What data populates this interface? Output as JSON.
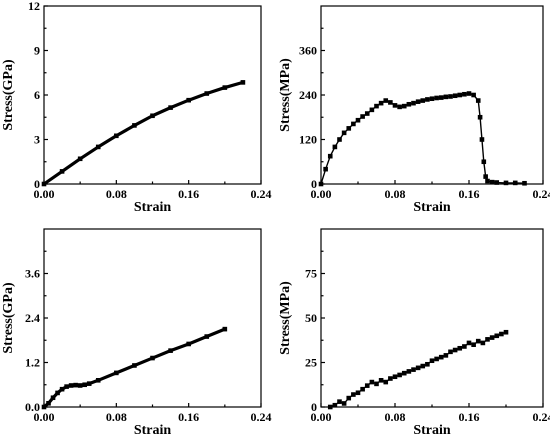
{
  "chart_data": [
    {
      "type": "line",
      "marker": "square",
      "color": "#000000",
      "xlabel": "Strain",
      "ylabel": "Stress(GPa)",
      "xlim": [
        0,
        0.24
      ],
      "ylim": [
        0,
        12
      ],
      "xticks": [
        0.0,
        0.08,
        0.16,
        0.24
      ],
      "xtick_labels": [
        "0.00",
        "0.08",
        "0.16",
        "0.24"
      ],
      "yticks": [
        0,
        3,
        6,
        9,
        12
      ],
      "ytick_labels": [
        "0",
        "3",
        "6",
        "9",
        "12"
      ],
      "grid": false,
      "series": [
        {
          "x": [
            0,
            0.02,
            0.04,
            0.06,
            0.08,
            0.1,
            0.12,
            0.14,
            0.16,
            0.18,
            0.2,
            0.22
          ],
          "y": [
            0,
            0.85,
            1.7,
            2.5,
            3.25,
            3.95,
            4.6,
            5.15,
            5.65,
            6.1,
            6.5,
            6.85
          ]
        }
      ]
    },
    {
      "type": "scatter",
      "marker": "square",
      "color": "#000000",
      "xlabel": "Strain",
      "ylabel": "Stress(MPa)",
      "xlim": [
        0,
        0.24
      ],
      "ylim": [
        0,
        480
      ],
      "xticks": [
        0.0,
        0.08,
        0.16,
        0.24
      ],
      "xtick_labels": [
        "0.00",
        "0.08",
        "0.16",
        "0.24"
      ],
      "yticks": [
        0,
        120,
        240,
        360
      ],
      "ytick_labels": [
        "0",
        "120",
        "240",
        "360"
      ],
      "grid": false,
      "series": [
        {
          "x": [
            0,
            0.005,
            0.01,
            0.015,
            0.02,
            0.025,
            0.03,
            0.035,
            0.04,
            0.045,
            0.05,
            0.055,
            0.06,
            0.065,
            0.07,
            0.075,
            0.08,
            0.085,
            0.09,
            0.095,
            0.1,
            0.105,
            0.11,
            0.115,
            0.12,
            0.125,
            0.13,
            0.135,
            0.14,
            0.145,
            0.15,
            0.155,
            0.16,
            0.165,
            0.17,
            0.172,
            0.174,
            0.176,
            0.178,
            0.18,
            0.185,
            0.19,
            0.2,
            0.21,
            0.22
          ],
          "y": [
            0,
            40,
            75,
            100,
            120,
            138,
            150,
            162,
            172,
            182,
            190,
            200,
            210,
            218,
            225,
            220,
            212,
            208,
            210,
            215,
            218,
            222,
            225,
            228,
            230,
            232,
            233,
            235,
            236,
            238,
            240,
            242,
            244,
            240,
            225,
            180,
            120,
            60,
            20,
            8,
            5,
            4,
            3,
            3,
            2
          ]
        }
      ]
    },
    {
      "type": "line",
      "marker": "square",
      "color": "#000000",
      "xlabel": "Strain",
      "ylabel": "Stress(GPa)",
      "xlim": [
        0,
        0.24
      ],
      "ylim": [
        0,
        4.8
      ],
      "xticks": [
        0.0,
        0.08,
        0.16,
        0.24
      ],
      "xtick_labels": [
        "0.00",
        "0.08",
        "0.16",
        "0.24"
      ],
      "yticks": [
        0,
        1.2,
        2.4,
        3.6
      ],
      "ytick_labels": [
        "0.0",
        "1.2",
        "2.4",
        "3.6"
      ],
      "grid": false,
      "series": [
        {
          "x": [
            0,
            0.005,
            0.01,
            0.015,
            0.02,
            0.025,
            0.03,
            0.035,
            0.04,
            0.045,
            0.05,
            0.06,
            0.08,
            0.1,
            0.12,
            0.14,
            0.16,
            0.18,
            0.2
          ],
          "y": [
            0,
            0.1,
            0.25,
            0.38,
            0.48,
            0.55,
            0.58,
            0.59,
            0.58,
            0.6,
            0.63,
            0.72,
            0.92,
            1.12,
            1.32,
            1.52,
            1.7,
            1.9,
            2.1
          ]
        }
      ]
    },
    {
      "type": "scatter",
      "marker": "square",
      "color": "#000000",
      "xlabel": "Strain",
      "ylabel": "Stress(MPa)",
      "xlim": [
        0,
        0.24
      ],
      "ylim": [
        0,
        100
      ],
      "xticks": [
        0.0,
        0.08,
        0.16,
        0.24
      ],
      "xtick_labels": [
        "0.00",
        "0.08",
        "0.16",
        "0.24"
      ],
      "yticks": [
        0,
        25,
        50,
        75
      ],
      "ytick_labels": [
        "0",
        "25",
        "50",
        "75"
      ],
      "grid": false,
      "series": [
        {
          "x": [
            0.01,
            0.015,
            0.02,
            0.025,
            0.03,
            0.035,
            0.04,
            0.045,
            0.05,
            0.055,
            0.06,
            0.065,
            0.07,
            0.075,
            0.08,
            0.085,
            0.09,
            0.095,
            0.1,
            0.105,
            0.11,
            0.115,
            0.12,
            0.125,
            0.13,
            0.135,
            0.14,
            0.145,
            0.15,
            0.155,
            0.16,
            0.165,
            0.17,
            0.175,
            0.18,
            0.185,
            0.19,
            0.195,
            0.2
          ],
          "y": [
            0,
            1,
            3,
            2,
            5,
            7,
            8,
            10,
            12,
            14,
            13,
            15,
            14,
            16,
            17,
            18,
            19,
            20,
            21,
            22,
            23,
            24,
            26,
            27,
            28,
            29,
            31,
            32,
            33,
            34,
            36,
            35,
            37,
            36,
            38,
            39,
            40,
            41,
            42
          ]
        }
      ]
    }
  ]
}
